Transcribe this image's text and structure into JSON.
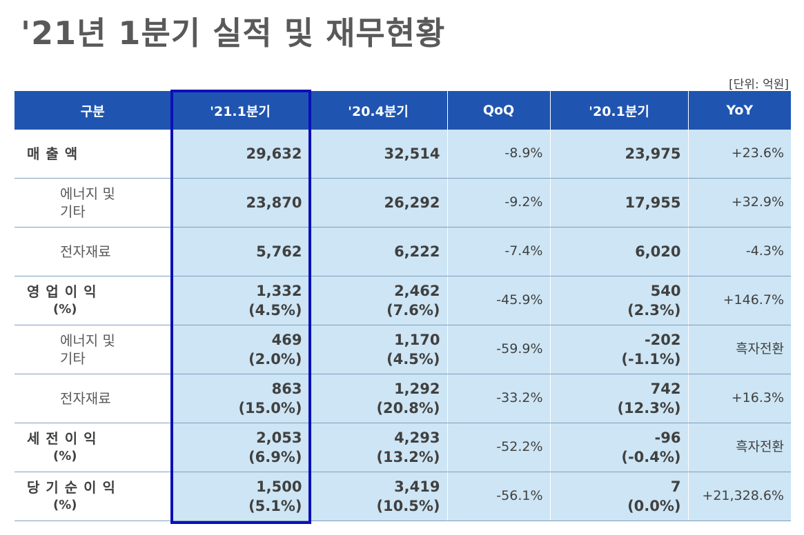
{
  "title": "'21년 1분기 실적 및 재무현황",
  "unit": "[단위: 억원]",
  "headers": [
    "구분",
    "'21.1분기",
    "'20.4분기",
    "QoQ",
    "'20.1분기",
    "YoY"
  ],
  "rows": [
    {
      "label": "매  출  액",
      "pct_label": "",
      "sub": false,
      "q21_1": "29,632",
      "q21_1_pct": "",
      "q20_4": "32,514",
      "q20_4_pct": "",
      "qoq": "-8.9%",
      "q20_1": "23,975",
      "q20_1_pct": "",
      "yoy": "+23.6%"
    },
    {
      "label_1": "에너지 및",
      "label_2": "기타",
      "sub": true,
      "q21_1": "23,870",
      "q21_1_pct": "",
      "q20_4": "26,292",
      "q20_4_pct": "",
      "qoq": "-9.2%",
      "q20_1": "17,955",
      "q20_1_pct": "",
      "yoy": "+32.9%"
    },
    {
      "label_1": "전자재료",
      "label_2": "",
      "sub": true,
      "q21_1": "5,762",
      "q21_1_pct": "",
      "q20_4": "6,222",
      "q20_4_pct": "",
      "qoq": "-7.4%",
      "q20_1": "6,020",
      "q20_1_pct": "",
      "yoy": "-4.3%"
    },
    {
      "label": "영 업 이 익",
      "pct_label": "(%)",
      "sub": false,
      "q21_1": "1,332",
      "q21_1_pct": "(4.5%)",
      "q20_4": "2,462",
      "q20_4_pct": "(7.6%)",
      "qoq": "-45.9%",
      "q20_1": "540",
      "q20_1_pct": "(2.3%)",
      "yoy": "+146.7%"
    },
    {
      "label_1": "에너지 및",
      "label_2": "기타",
      "sub": true,
      "q21_1": "469",
      "q21_1_pct": "(2.0%)",
      "q20_4": "1,170",
      "q20_4_pct": "(4.5%)",
      "qoq": "-59.9%",
      "q20_1": "-202",
      "q20_1_pct": "(-1.1%)",
      "yoy": "흑자전환"
    },
    {
      "label_1": "전자재료",
      "label_2": "",
      "sub": true,
      "q21_1": "863",
      "q21_1_pct": "(15.0%)",
      "q20_4": "1,292",
      "q20_4_pct": "(20.8%)",
      "qoq": "-33.2%",
      "q20_1": "742",
      "q20_1_pct": "(12.3%)",
      "yoy": "+16.3%"
    },
    {
      "label": "세 전 이 익",
      "pct_label": "(%)",
      "sub": false,
      "q21_1": "2,053",
      "q21_1_pct": "(6.9%)",
      "q20_4": "4,293",
      "q20_4_pct": "(13.2%)",
      "qoq": "-52.2%",
      "q20_1": "-96",
      "q20_1_pct": "(-0.4%)",
      "yoy": "흑자전환"
    },
    {
      "label": "당 기 순 이 익",
      "pct_label": "(%)",
      "sub": false,
      "q21_1": "1,500",
      "q21_1_pct": "(5.1%)",
      "q20_4": "3,419",
      "q20_4_pct": "(10.5%)",
      "qoq": "-56.1%",
      "q20_1": "7",
      "q20_1_pct": "(0.0%)",
      "yoy": "+21,328.6%"
    }
  ],
  "colors": {
    "header_bg": "#1f55b0",
    "cell_bg": "#cde5f4",
    "highlight_border": "#0a10b8"
  }
}
